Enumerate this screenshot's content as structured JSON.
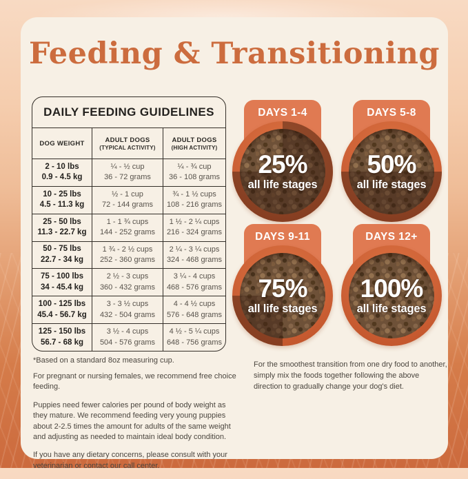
{
  "page": {
    "title": "Feeding & Transitioning"
  },
  "table": {
    "title": "DAILY FEEDING GUIDELINES",
    "columns": [
      {
        "label": "DOG WEIGHT",
        "sub": ""
      },
      {
        "label": "ADULT DOGS",
        "sub": "(TYPICAL ACTIVITY)"
      },
      {
        "label": "ADULT DOGS",
        "sub": "(HIGH ACTIVITY)"
      }
    ],
    "rows": [
      {
        "lbs": "2 - 10 lbs",
        "kg": "0.9 - 4.5 kg",
        "typ_cups": "¼ - ½ cup",
        "typ_grams": "36 - 72 grams",
        "high_cups": "¼ - ¾ cup",
        "high_grams": "36 - 108 grams"
      },
      {
        "lbs": "10 - 25 lbs",
        "kg": "4.5 - 11.3 kg",
        "typ_cups": "½ - 1 cup",
        "typ_grams": "72 - 144 grams",
        "high_cups": "¾ - 1 ½ cups",
        "high_grams": "108 - 216 grams"
      },
      {
        "lbs": "25 - 50 lbs",
        "kg": "11.3 - 22.7 kg",
        "typ_cups": "1 - 1 ¾ cups",
        "typ_grams": "144 - 252 grams",
        "high_cups": "1 ½ - 2 ¼ cups",
        "high_grams": "216 - 324 grams"
      },
      {
        "lbs": "50 - 75 lbs",
        "kg": "22.7 - 34 kg",
        "typ_cups": "1 ¾ - 2 ½ cups",
        "typ_grams": "252 - 360 grams",
        "high_cups": "2 ¼ - 3 ¼ cups",
        "high_grams": "324 - 468 grams"
      },
      {
        "lbs": "75 - 100 lbs",
        "kg": "34 - 45.4 kg",
        "typ_cups": "2 ½ - 3 cups",
        "typ_grams": "360 - 432 grams",
        "high_cups": "3 ¼ - 4 cups",
        "high_grams": "468 - 576 grams"
      },
      {
        "lbs": "100 - 125 lbs",
        "kg": "45.4 - 56.7 kg",
        "typ_cups": "3 - 3 ½ cups",
        "typ_grams": "432 - 504 grams",
        "high_cups": "4 - 4 ½ cups",
        "high_grams": "576 - 648 grams"
      },
      {
        "lbs": "125 - 150 lbs",
        "kg": "56.7 - 68 kg",
        "typ_cups": "3 ½ - 4 cups",
        "typ_grams": "504 - 576 grams",
        "high_cups": "4 ½ - 5 ¼ cups",
        "high_grams": "648 - 756 grams"
      }
    ],
    "footnote": "*Based on a standard 8oz measuring cup."
  },
  "notes": {
    "pregnant": "For pregnant or nursing females, we recommend free choice feeding.",
    "puppies": "Puppies need fewer calories per pound of body weight as they mature. We recommend feeding very young puppies about 2-2.5 times the amount for adults of the same weight and adjusting as needed to maintain ideal body condition.",
    "dietary": "If you have any dietary concerns, please consult with your veterinarian or contact our call center."
  },
  "transition": {
    "steps": [
      {
        "days": "DAYS 1-4",
        "percent": "25%",
        "label": "all life stages",
        "fill_percent": 25
      },
      {
        "days": "DAYS 5-8",
        "percent": "50%",
        "label": "all life stages",
        "fill_percent": 50
      },
      {
        "days": "DAYS 9-11",
        "percent": "75%",
        "label": "all life stages",
        "fill_percent": 75
      },
      {
        "days": "DAYS 12+",
        "percent": "100%",
        "label": "all life stages",
        "fill_percent": 100
      }
    ],
    "note": "For the smoothest transition from one dry food to another, simply mix the foods together following the above direction to gradually change your dog's diet."
  },
  "colors": {
    "accent_orange": "#cc6c3e",
    "badge_orange": "#e07a52",
    "bowl_rim": "#c95f33",
    "card_cream": "#f7f0e5",
    "text_dark": "#2b2925",
    "text_gray": "#57524b",
    "overlay_dark": "rgba(59,31,18,0.45)"
  }
}
